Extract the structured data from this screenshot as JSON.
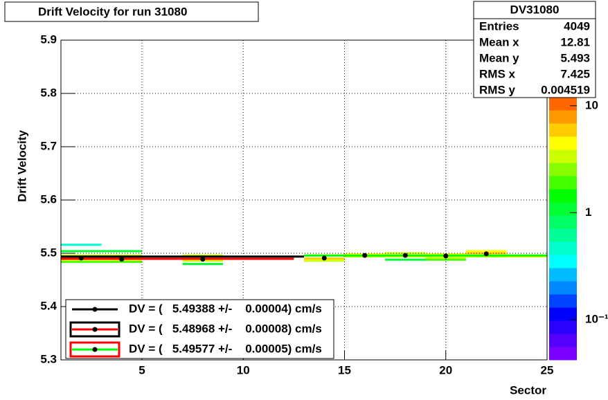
{
  "chart_data": {
    "type": "heatmap",
    "title": "Drift Velocity for run 31080",
    "x_label": "Sector",
    "y_label": "Drift Velocity",
    "xlim": [
      1,
      25
    ],
    "xticks": [
      5,
      10,
      15,
      20,
      25
    ],
    "ylim": [
      5.3,
      5.9
    ],
    "yticks": [
      5.3,
      5.4,
      5.5,
      5.6,
      5.7,
      5.8,
      5.9
    ],
    "grid": true,
    "log_z": true,
    "zlim": [
      0.042,
      12.1
    ],
    "zticks": [
      {
        "value": 0.1,
        "label": "10⁻¹"
      },
      1,
      10
    ],
    "palette": [
      "#7a00ff",
      "#5500ff",
      "#2a00ff",
      "#0000ff",
      "#0044ff",
      "#0088ff",
      "#00bbff",
      "#00ffff",
      "#00ffcc",
      "#00ff99",
      "#00ff66",
      "#00ff33",
      "#00ff00",
      "#44ff00",
      "#88ff00",
      "#ccff00",
      "#ffff00",
      "#ffcc00",
      "#ff9900",
      "#ff6600"
    ],
    "cells": [
      [
        1,
        5,
        5.496,
        3
      ],
      [
        1,
        5,
        5.492,
        8
      ],
      [
        1,
        5,
        5.488,
        5
      ],
      [
        1,
        5,
        5.484,
        2
      ],
      [
        1,
        3,
        5.516,
        0.5
      ],
      [
        1,
        5,
        5.504,
        1
      ],
      [
        7,
        9,
        5.496,
        3
      ],
      [
        7,
        9,
        5.49,
        6
      ],
      [
        7,
        9,
        5.486,
        3
      ],
      [
        7,
        9,
        5.48,
        1
      ],
      [
        13,
        15,
        5.496,
        5
      ],
      [
        13,
        15,
        5.49,
        6
      ],
      [
        13,
        15,
        5.486,
        3
      ],
      [
        15,
        17,
        5.498,
        4
      ],
      [
        15,
        17,
        5.494,
        3
      ],
      [
        17,
        19,
        5.5,
        3
      ],
      [
        17,
        19,
        5.494,
        4
      ],
      [
        17,
        19,
        5.488,
        1
      ],
      [
        19,
        21,
        5.498,
        4
      ],
      [
        19,
        21,
        5.492,
        3
      ],
      [
        19,
        21,
        5.488,
        2
      ],
      [
        21,
        23,
        5.504,
        4
      ],
      [
        21,
        23,
        5.5,
        6
      ],
      [
        21,
        23,
        5.494,
        3
      ],
      [
        23,
        25,
        5.496,
        3
      ],
      [
        23,
        25,
        5.494,
        5
      ]
    ],
    "profile": {
      "color": "#000000",
      "x": [
        2,
        4,
        8,
        14,
        16,
        18,
        20,
        22
      ],
      "values": [
        5.491,
        5.489,
        5.489,
        5.491,
        5.496,
        5.496,
        5.495,
        5.499
      ]
    },
    "series": [
      {
        "name": "DV = (   5.49388 +/-    0.00004) cm/s",
        "color": "#000000",
        "box_color": null,
        "xrange": [
          1,
          13
        ],
        "value": 5.49388
      },
      {
        "name": "DV = (   5.48968 +/-    0.00008) cm/s",
        "color": "#ff0000",
        "box_color": "#000000",
        "xrange": [
          1,
          12.5
        ],
        "value": 5.48968
      },
      {
        "name": "DV = (   5.49577 +/-    0.00005) cm/s",
        "color": "#00ff00",
        "box_color": "#ff0000",
        "xrange": [
          13,
          25
        ],
        "value": 5.49577
      }
    ],
    "stats": {
      "title": "DV31080",
      "rows": [
        [
          "Entries",
          "4049"
        ],
        [
          "Mean x",
          "12.81"
        ],
        [
          "Mean y",
          "5.493"
        ],
        [
          "RMS x",
          "7.425"
        ],
        [
          "RMS y",
          "0.004519"
        ]
      ]
    }
  }
}
